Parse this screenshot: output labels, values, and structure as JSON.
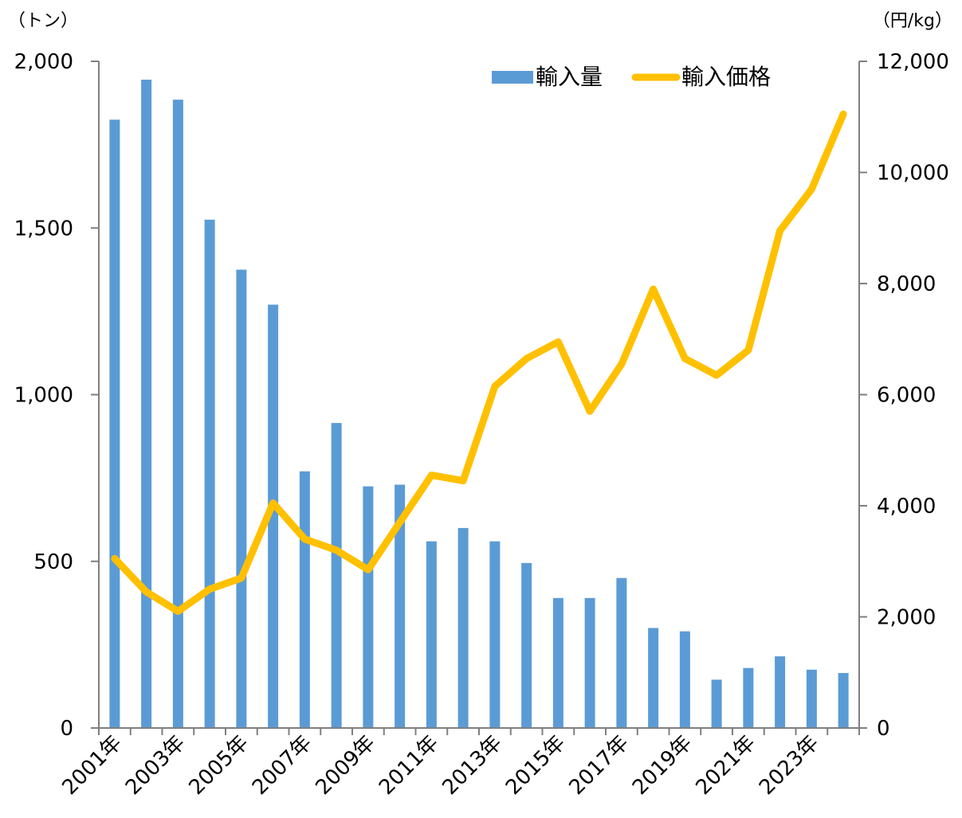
{
  "chart_data": {
    "type": "bar+line",
    "title": "",
    "categories": [
      "2001年",
      "2002年",
      "2003年",
      "2004年",
      "2005年",
      "2006年",
      "2007年",
      "2008年",
      "2009年",
      "2010年",
      "2011年",
      "2012年",
      "2013年",
      "2014年",
      "2015年",
      "2016年",
      "2017年",
      "2018年",
      "2019年",
      "2020年",
      "2021年",
      "2022年",
      "2023年",
      "2024年"
    ],
    "x_tick_labels": [
      "2001年",
      "2003年",
      "2005年",
      "2007年",
      "2009年",
      "2011年",
      "2013年",
      "2015年",
      "2017年",
      "2019年",
      "2021年",
      "2023年"
    ],
    "series": [
      {
        "name": "輸入量",
        "type": "bar",
        "axis": "left",
        "color": "#5b9bd5",
        "values": [
          1825,
          1945,
          1885,
          1525,
          1375,
          1270,
          770,
          915,
          725,
          730,
          560,
          600,
          560,
          495,
          390,
          390,
          450,
          300,
          290,
          145,
          180,
          215,
          175,
          165
        ]
      },
      {
        "name": "輸入価格",
        "type": "line",
        "axis": "right",
        "color": "#ffc000",
        "values": [
          3050,
          2450,
          2100,
          2500,
          2700,
          4050,
          3400,
          3200,
          2850,
          3700,
          4550,
          4450,
          6150,
          6650,
          6950,
          5700,
          6550,
          7900,
          6650,
          6350,
          6800,
          8950,
          9700,
          11050
        ]
      }
    ],
    "y_left": {
      "unit_label": "（トン）",
      "ylim": [
        0,
        2000
      ],
      "ticks": [
        "0",
        "500",
        "1,000",
        "1,500",
        "2,000"
      ]
    },
    "y_right": {
      "unit_label": "（円/kg）",
      "ylim": [
        0,
        12000
      ],
      "ticks": [
        "0",
        "2,000",
        "4,000",
        "6,000",
        "8,000",
        "10,000",
        "12,000"
      ]
    },
    "legend_position": "top-right",
    "grid": false
  }
}
